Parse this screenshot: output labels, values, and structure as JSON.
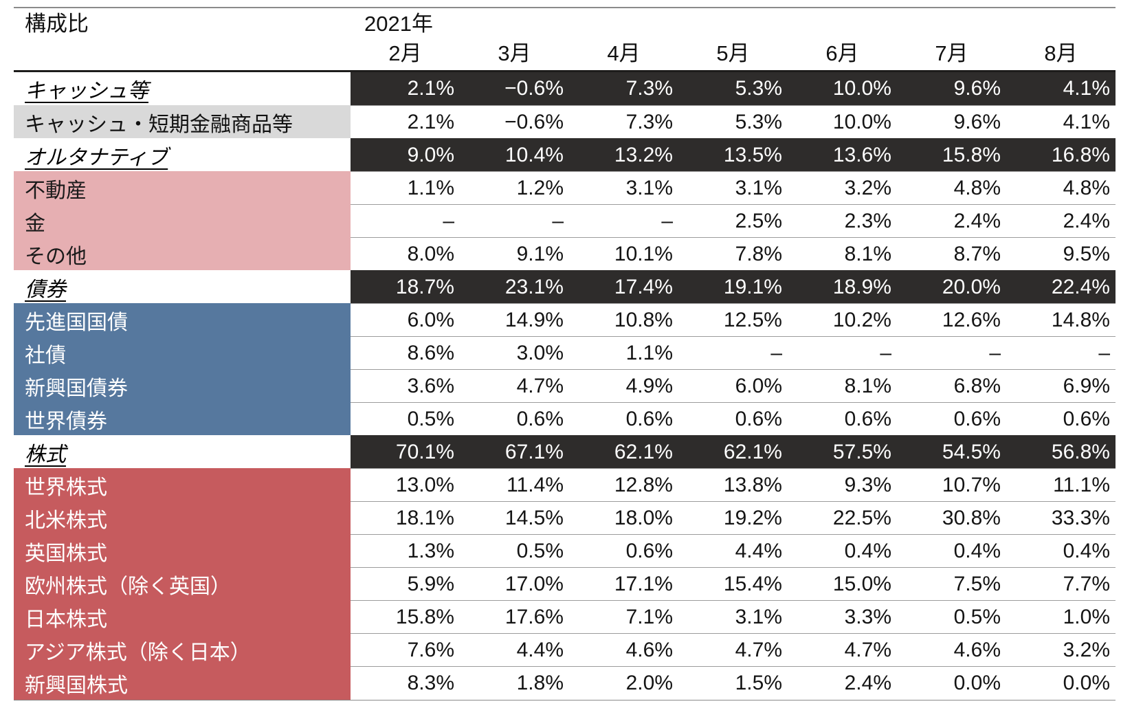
{
  "title": "構成比",
  "year_label": "2021年",
  "colors": {
    "dark_band": "#2e2c2b",
    "cash_gray": "#d9d9d9",
    "alternative_pink": "#e6afb2",
    "bond_blue": "#56789e",
    "equity_red": "#c65b5e",
    "row_border": "#9b9b9b",
    "outer_border": "#8a8a8a"
  },
  "chart_data": {
    "type": "table",
    "title": "構成比",
    "year": "2021年",
    "categories": [
      "2月",
      "3月",
      "4月",
      "5月",
      "6月",
      "7月",
      "8月"
    ],
    "series": [
      {
        "name": "キャッシュ等",
        "role": "section",
        "group": "cash-section",
        "values": [
          "2.1%",
          "−0.6%",
          "7.3%",
          "5.3%",
          "10.0%",
          "9.6%",
          "4.1%"
        ]
      },
      {
        "name": "キャッシュ・短期金融商品等",
        "role": "item",
        "group": "cash",
        "values": [
          "2.1%",
          "−0.6%",
          "7.3%",
          "5.3%",
          "10.0%",
          "9.6%",
          "4.1%"
        ]
      },
      {
        "name": "オルタナティブ",
        "role": "section",
        "group": "alternative-section",
        "values": [
          "9.0%",
          "10.4%",
          "13.2%",
          "13.5%",
          "13.6%",
          "15.8%",
          "16.8%"
        ]
      },
      {
        "name": "不動産",
        "role": "item",
        "group": "alternative",
        "values": [
          "1.1%",
          "1.2%",
          "3.1%",
          "3.1%",
          "3.2%",
          "4.8%",
          "4.8%"
        ]
      },
      {
        "name": "金",
        "role": "item",
        "group": "alternative",
        "values": [
          "–",
          "–",
          "–",
          "2.5%",
          "2.3%",
          "2.4%",
          "2.4%"
        ]
      },
      {
        "name": "その他",
        "role": "item",
        "group": "alternative",
        "values": [
          "8.0%",
          "9.1%",
          "10.1%",
          "7.8%",
          "8.1%",
          "8.7%",
          "9.5%"
        ]
      },
      {
        "name": "債券",
        "role": "section",
        "group": "bond-section",
        "values": [
          "18.7%",
          "23.1%",
          "17.4%",
          "19.1%",
          "18.9%",
          "20.0%",
          "22.4%"
        ]
      },
      {
        "name": "先進国国債",
        "role": "item",
        "group": "bond",
        "values": [
          "6.0%",
          "14.9%",
          "10.8%",
          "12.5%",
          "10.2%",
          "12.6%",
          "14.8%"
        ]
      },
      {
        "name": "社債",
        "role": "item",
        "group": "bond",
        "values": [
          "8.6%",
          "3.0%",
          "1.1%",
          "–",
          "–",
          "–",
          "–"
        ]
      },
      {
        "name": "新興国債券",
        "role": "item",
        "group": "bond",
        "values": [
          "3.6%",
          "4.7%",
          "4.9%",
          "6.0%",
          "8.1%",
          "6.8%",
          "6.9%"
        ]
      },
      {
        "name": "世界債券",
        "role": "item",
        "group": "bond",
        "values": [
          "0.5%",
          "0.6%",
          "0.6%",
          "0.6%",
          "0.6%",
          "0.6%",
          "0.6%"
        ]
      },
      {
        "name": "株式",
        "role": "section",
        "group": "equity-section",
        "values": [
          "70.1%",
          "67.1%",
          "62.1%",
          "62.1%",
          "57.5%",
          "54.5%",
          "56.8%"
        ]
      },
      {
        "name": "世界株式",
        "role": "item",
        "group": "equity",
        "values": [
          "13.0%",
          "11.4%",
          "12.8%",
          "13.8%",
          "9.3%",
          "10.7%",
          "11.1%"
        ]
      },
      {
        "name": "北米株式",
        "role": "item",
        "group": "equity",
        "values": [
          "18.1%",
          "14.5%",
          "18.0%",
          "19.2%",
          "22.5%",
          "30.8%",
          "33.3%"
        ]
      },
      {
        "name": "英国株式",
        "role": "item",
        "group": "equity",
        "values": [
          "1.3%",
          "0.5%",
          "0.6%",
          "4.4%",
          "0.4%",
          "0.4%",
          "0.4%"
        ]
      },
      {
        "name": "欧州株式（除く英国）",
        "role": "item",
        "group": "equity",
        "values": [
          "5.9%",
          "17.0%",
          "17.1%",
          "15.4%",
          "15.0%",
          "7.5%",
          "7.7%"
        ]
      },
      {
        "name": "日本株式",
        "role": "item",
        "group": "equity",
        "values": [
          "15.8%",
          "17.6%",
          "7.1%",
          "3.1%",
          "3.3%",
          "0.5%",
          "1.0%"
        ]
      },
      {
        "name": "アジア株式（除く日本）",
        "role": "item",
        "group": "equity",
        "values": [
          "7.6%",
          "4.4%",
          "4.6%",
          "4.7%",
          "4.7%",
          "4.6%",
          "3.2%"
        ]
      },
      {
        "name": "新興国株式",
        "role": "item",
        "group": "equity",
        "values": [
          "8.3%",
          "1.8%",
          "2.0%",
          "1.5%",
          "2.4%",
          "0.0%",
          "0.0%"
        ]
      }
    ]
  }
}
